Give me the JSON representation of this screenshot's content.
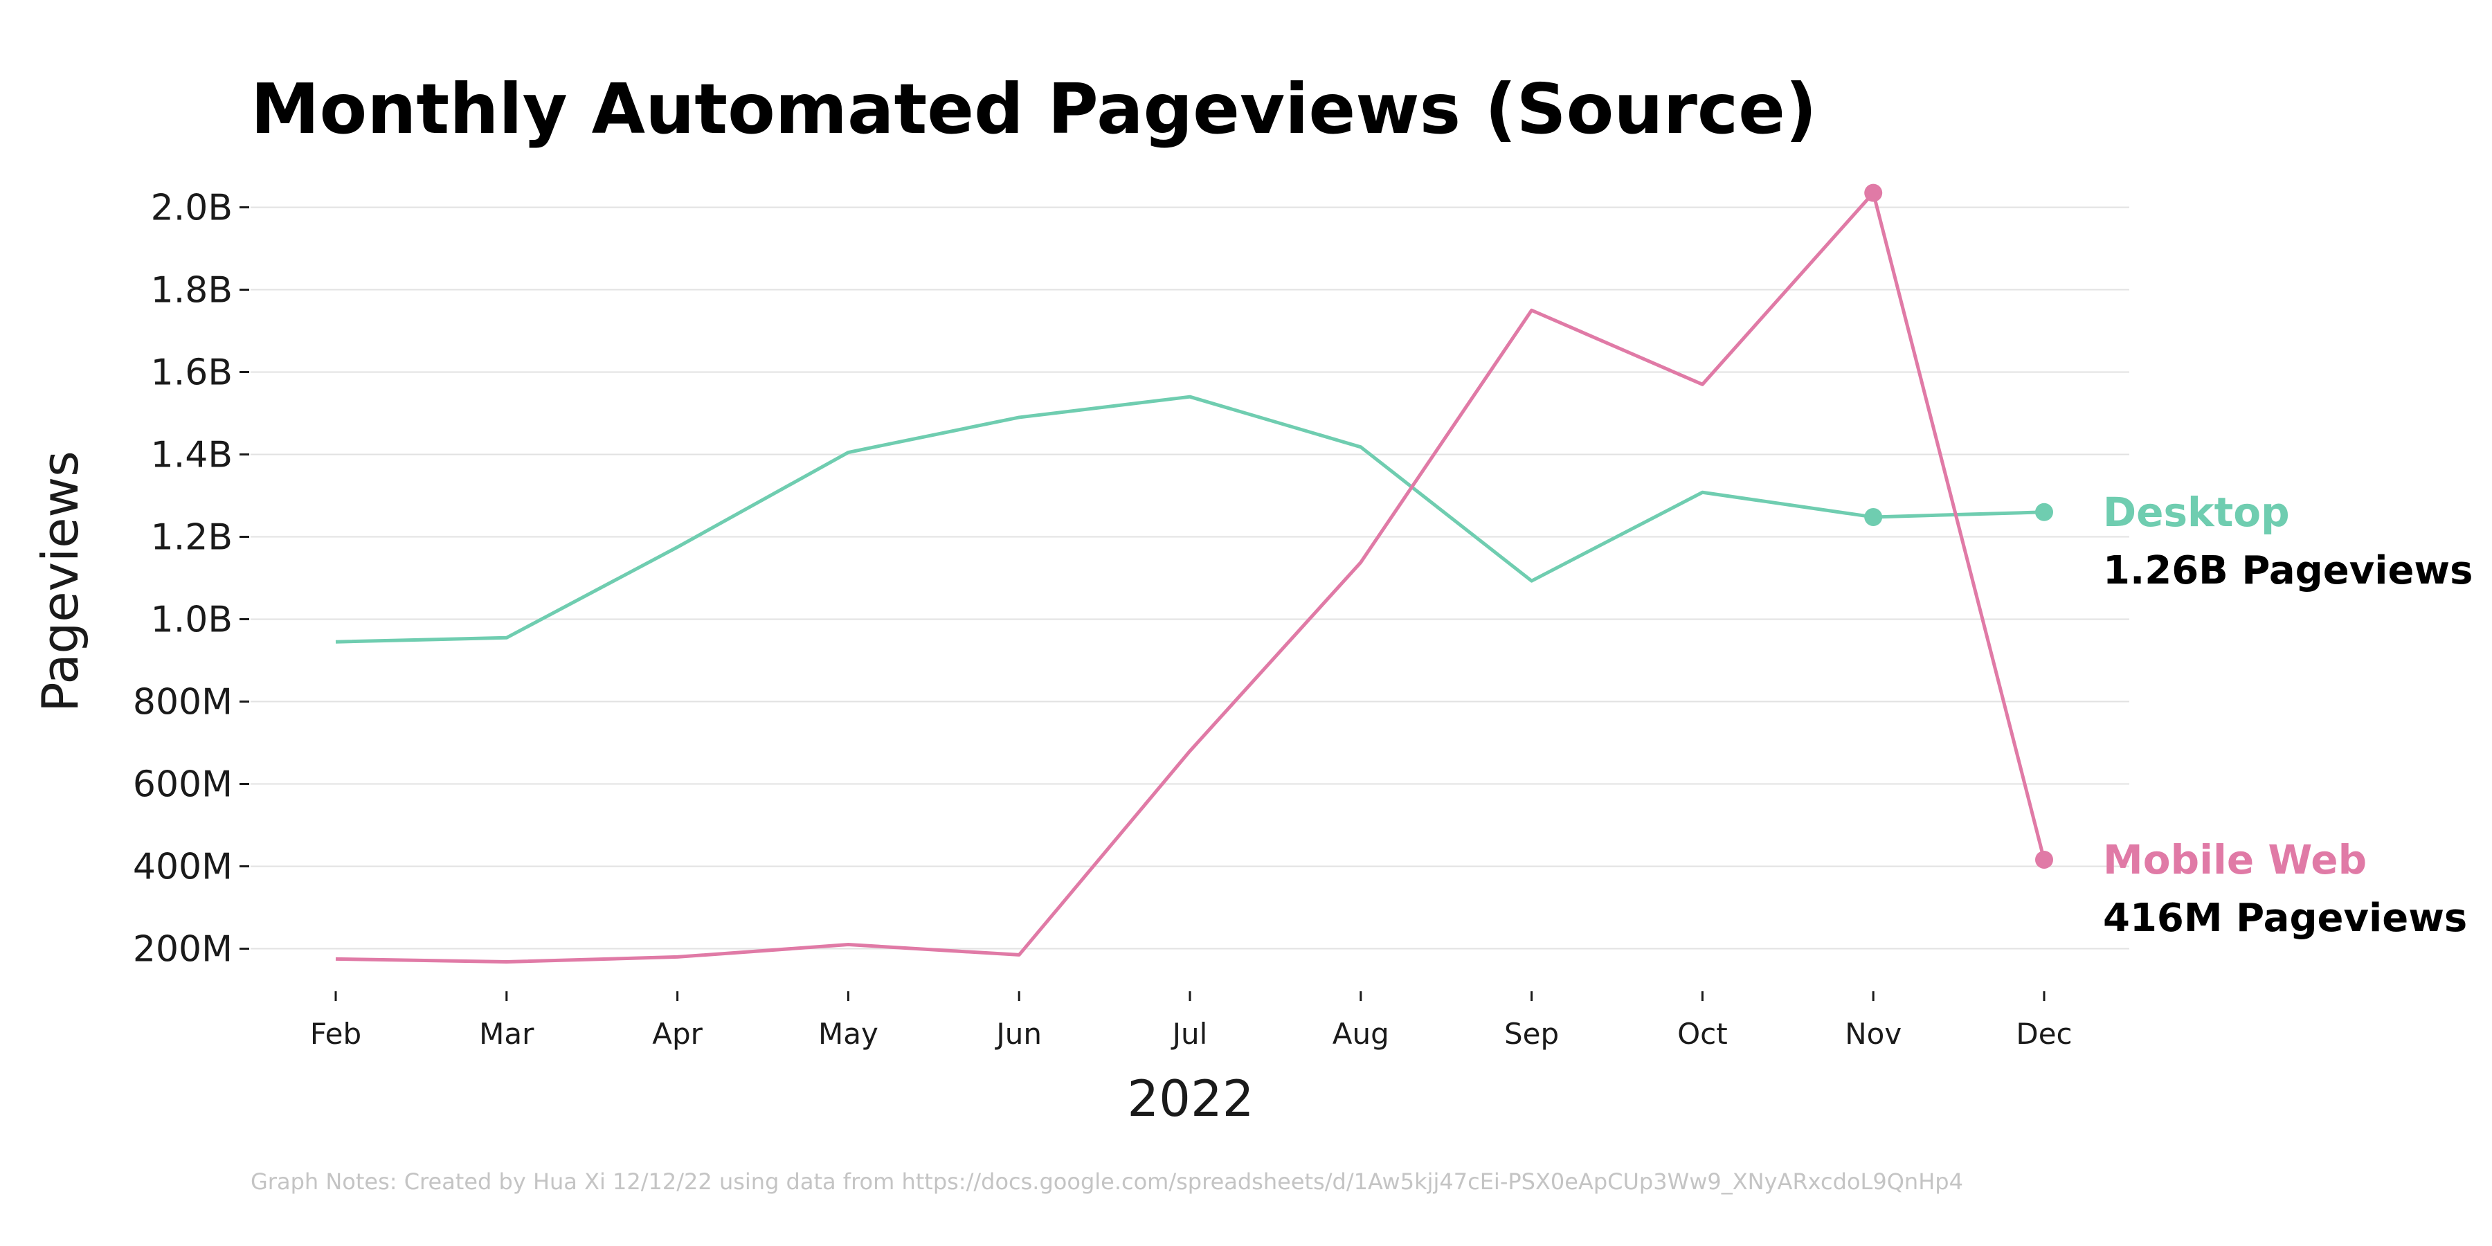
{
  "chart_data": {
    "type": "line",
    "title": "Monthly Automated Pageviews (Source)",
    "xlabel": "2022",
    "ylabel": "Pageviews",
    "categories": [
      "Feb",
      "Mar",
      "Apr",
      "May",
      "Jun",
      "Jul",
      "Aug",
      "Sep",
      "Oct",
      "Nov",
      "Dec"
    ],
    "ylim": [
      100000000,
      2100000000
    ],
    "yticks": [
      200000000,
      400000000,
      600000000,
      800000000,
      1000000000,
      1200000000,
      1400000000,
      1600000000,
      1800000000,
      2000000000
    ],
    "ytick_labels": [
      "200M",
      "400M",
      "600M",
      "800M",
      "1.0B",
      "1.2B",
      "1.4B",
      "1.6B",
      "1.8B",
      "2.0B"
    ],
    "grid": true,
    "legend": "direct-labels-right",
    "series": [
      {
        "name": "Desktop",
        "color": "#6fcdb0",
        "values": [
          945000000,
          955000000,
          1175000000,
          1405000000,
          1490000000,
          1540000000,
          1418000000,
          1093000000,
          1308000000,
          1248000000,
          1260000000
        ],
        "markers": [
          "Nov",
          "Dec"
        ],
        "end_value_label": "1.26B Pageviews"
      },
      {
        "name": "Mobile Web",
        "color": "#e07aa6",
        "values": [
          175000000,
          168000000,
          180000000,
          210000000,
          185000000,
          680000000,
          1138000000,
          1750000000,
          1570000000,
          2035000000,
          416000000
        ],
        "markers": [
          "Nov",
          "Dec"
        ],
        "end_value_label": "416M Pageviews"
      }
    ],
    "notes": "Graph Notes: Created by Hua Xi 12/12/22 using data from https://docs.google.com/spreadsheets/d/1Aw5kjj47cEi-PSX0eApCUp3Ww9_XNyARxcdoL9QnHp4"
  }
}
